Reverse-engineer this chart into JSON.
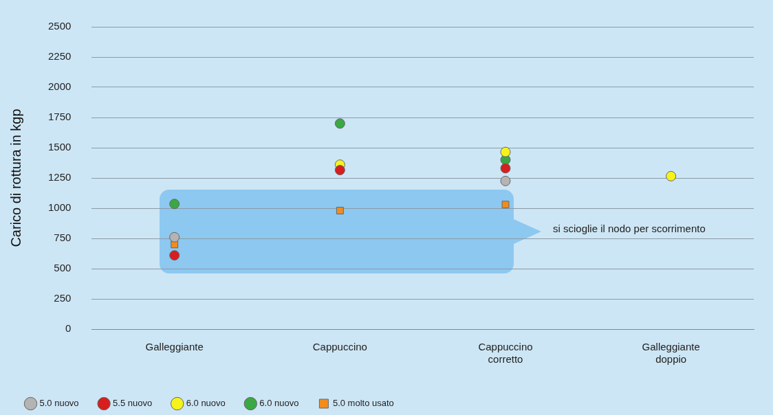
{
  "chart_data": {
    "type": "scatter",
    "ylabel": "Carico di rottura in kgp",
    "categories": [
      "Galleggiante",
      "Cappuccino",
      "Cappuccino\ncorretto",
      "Galleggiante\ndoppio"
    ],
    "series": [
      {
        "name": "5.0 nuovo",
        "color": "#b4b4b4",
        "values": [
          760,
          null,
          1225,
          null
        ]
      },
      {
        "name": "5.5 nuovo",
        "color": "#d81e1e",
        "values": [
          610,
          1315,
          1330,
          null
        ]
      },
      {
        "name": "6.0 nuovo",
        "color": "#f6f31c",
        "values": [
          null,
          1360,
          1465,
          1265
        ]
      },
      {
        "name": "6.0 nuovo",
        "color": "#3aa844",
        "values": [
          1035,
          1700,
          1400,
          null
        ]
      },
      {
        "name": "5.0 molto usato",
        "color": "#f28c1e",
        "values": [
          700,
          980,
          1030,
          null
        ],
        "marker": "square"
      }
    ],
    "marker": "circle",
    "ylim": [
      0,
      2500
    ],
    "yticks": [
      0,
      250,
      500,
      750,
      1000,
      1250,
      1500,
      1750,
      2000,
      2250,
      2500
    ],
    "grid": "y",
    "legend": "bottom",
    "annotations": [
      "si scioglie il nodo per scorrimento"
    ]
  }
}
